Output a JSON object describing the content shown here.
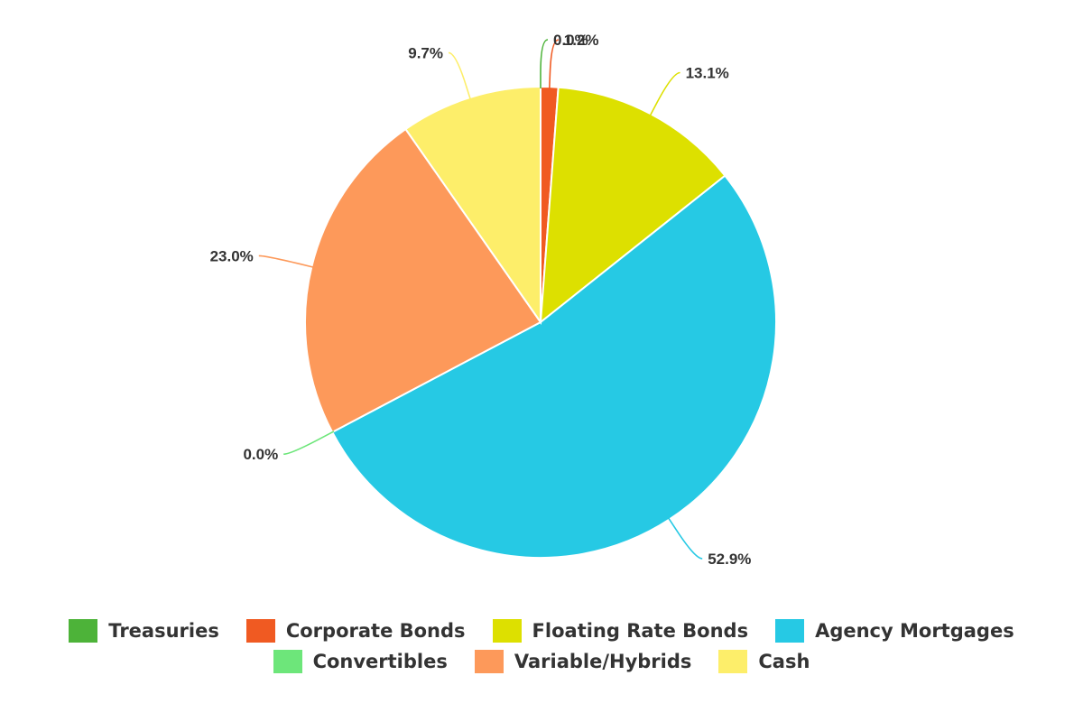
{
  "chart_data": {
    "type": "pie",
    "legend_position": "bottom",
    "slices": [
      {
        "name": "Treasuries",
        "value": 0.0,
        "label": "0.0%",
        "color": "#4db339"
      },
      {
        "name": "Corporate Bonds",
        "value": 1.2,
        "label": "1.2%",
        "color": "#f05a22"
      },
      {
        "name": "Floating Rate Bonds",
        "value": 13.1,
        "label": "13.1%",
        "color": "#dde000"
      },
      {
        "name": "Agency Mortgages",
        "value": 52.9,
        "label": "52.9%",
        "color": "#26c9e4"
      },
      {
        "name": "Convertibles",
        "value": 0.0,
        "label": "0.0%",
        "color": "#6de67a"
      },
      {
        "name": "Variable/Hybrids",
        "value": 23.0,
        "label": "23.0%",
        "color": "#fd995a"
      },
      {
        "name": "Cash",
        "value": 9.7,
        "label": "9.7%",
        "color": "#fdee6a"
      }
    ]
  }
}
